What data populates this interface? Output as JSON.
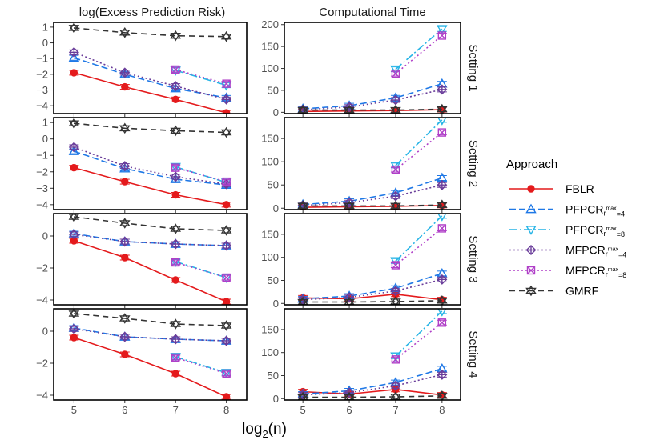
{
  "chart_data": {
    "type": "line",
    "x": [
      5,
      6,
      7,
      8
    ],
    "xlabel": "log2(n)",
    "xlabel_base": "log",
    "xlabel_sub": "2",
    "xlabel_rest": "(n)",
    "columns": [
      "log(Excess Prediction Risk)",
      "Computational Time"
    ],
    "legend_title": "Approach",
    "series_styles": [
      {
        "name": "FBLR",
        "color": "#e41a1c",
        "dash": "none",
        "marker": "circle"
      },
      {
        "name": "PFPCR_rmax=4",
        "label_base": "PFPCR",
        "label_sub": "r",
        "label_sup": "max",
        "label_tail": "=4",
        "color": "#1f78e6",
        "dash": "8,4",
        "marker": "triangle-up"
      },
      {
        "name": "PFPCR_rmax=8",
        "label_base": "PFPCR",
        "label_sub": "r",
        "label_sup": "max",
        "label_tail": "=8",
        "color": "#27b4e6",
        "dash": "10,3,2,3",
        "marker": "triangle-down"
      },
      {
        "name": "MFPCR_rmax=4",
        "label_base": "MFPCR",
        "label_sub": "r",
        "label_sup": "max",
        "label_tail": "=4",
        "color": "#6a3d9a",
        "dash": "2,3",
        "marker": "diamond-plus"
      },
      {
        "name": "MFPCR_rmax=8",
        "label_base": "MFPCR",
        "label_sub": "r",
        "label_sup": "max",
        "label_tail": "=8",
        "color": "#b040c8",
        "dash": "2,3",
        "marker": "square-x"
      },
      {
        "name": "GMRF",
        "color": "#333333",
        "dash": "7,5",
        "marker": "star"
      }
    ],
    "panels": [
      {
        "setting": "Setting 1",
        "column": 0,
        "ylim": [
          -4.5,
          1.3
        ],
        "yticks": [
          1,
          0,
          -1,
          -2,
          -3,
          -4
        ],
        "series": [
          {
            "name": "FBLR",
            "x": [
              5,
              6,
              7,
              8
            ],
            "values": [
              -1.9,
              -2.8,
              -3.6,
              -4.45
            ]
          },
          {
            "name": "PFPCR_rmax=4",
            "x": [
              5,
              6,
              7,
              8
            ],
            "values": [
              -0.95,
              -2.0,
              -2.9,
              -3.5
            ]
          },
          {
            "name": "PFPCR_rmax=8",
            "x": [
              7,
              8
            ],
            "values": [
              -1.75,
              -2.7
            ]
          },
          {
            "name": "MFPCR_rmax=4",
            "x": [
              5,
              6,
              7,
              8
            ],
            "values": [
              -0.6,
              -1.9,
              -2.75,
              -3.6
            ]
          },
          {
            "name": "MFPCR_rmax=8",
            "x": [
              7,
              8
            ],
            "values": [
              -1.7,
              -2.6
            ]
          },
          {
            "name": "GMRF",
            "x": [
              5,
              6,
              7,
              8
            ],
            "values": [
              0.95,
              0.65,
              0.45,
              0.4
            ]
          }
        ]
      },
      {
        "setting": "Setting 1",
        "column": 1,
        "ylim": [
          -3,
          205
        ],
        "yticks": [
          200,
          150,
          100,
          50,
          0
        ],
        "series": [
          {
            "name": "FBLR",
            "x": [
              5,
              6,
              7,
              8
            ],
            "values": [
              2,
              3,
              4,
              6
            ]
          },
          {
            "name": "PFPCR_rmax=4",
            "x": [
              5,
              6,
              7,
              8
            ],
            "values": [
              8,
              15,
              33,
              65
            ]
          },
          {
            "name": "PFPCR_rmax=8",
            "x": [
              7,
              8
            ],
            "values": [
              98,
              190
            ]
          },
          {
            "name": "MFPCR_rmax=4",
            "x": [
              5,
              6,
              7,
              8
            ],
            "values": [
              6,
              12,
              28,
              52
            ]
          },
          {
            "name": "MFPCR_rmax=8",
            "x": [
              7,
              8
            ],
            "values": [
              88,
              175
            ]
          },
          {
            "name": "GMRF",
            "x": [
              5,
              6,
              7,
              8
            ],
            "values": [
              5,
              5,
              5,
              7
            ]
          }
        ]
      },
      {
        "setting": "Setting 2",
        "column": 0,
        "ylim": [
          -4.3,
          1.3
        ],
        "yticks": [
          1,
          0,
          -1,
          -2,
          -3,
          -4
        ],
        "series": [
          {
            "name": "FBLR",
            "x": [
              5,
              6,
              7,
              8
            ],
            "values": [
              -1.75,
              -2.6,
              -3.4,
              -4.0
            ]
          },
          {
            "name": "PFPCR_rmax=4",
            "x": [
              5,
              6,
              7,
              8
            ],
            "values": [
              -0.75,
              -1.8,
              -2.45,
              -2.8
            ]
          },
          {
            "name": "PFPCR_rmax=8",
            "x": [
              7,
              8
            ],
            "values": [
              -1.7,
              -2.65
            ]
          },
          {
            "name": "MFPCR_rmax=4",
            "x": [
              5,
              6,
              7,
              8
            ],
            "values": [
              -0.5,
              -1.65,
              -2.3,
              -2.75
            ]
          },
          {
            "name": "MFPCR_rmax=8",
            "x": [
              7,
              8
            ],
            "values": [
              -1.75,
              -2.6
            ]
          },
          {
            "name": "GMRF",
            "x": [
              5,
              6,
              7,
              8
            ],
            "values": [
              0.95,
              0.65,
              0.5,
              0.4
            ]
          }
        ]
      },
      {
        "setting": "Setting 2",
        "column": 1,
        "ylim": [
          -3,
          195
        ],
        "yticks": [
          150,
          100,
          50,
          0
        ],
        "series": [
          {
            "name": "FBLR",
            "x": [
              5,
              6,
              7,
              8
            ],
            "values": [
              2,
              3,
              4,
              6
            ]
          },
          {
            "name": "PFPCR_rmax=4",
            "x": [
              5,
              6,
              7,
              8
            ],
            "values": [
              8,
              15,
              33,
              65
            ]
          },
          {
            "name": "PFPCR_rmax=8",
            "x": [
              7,
              8
            ],
            "values": [
              92,
              190
            ]
          },
          {
            "name": "MFPCR_rmax=4",
            "x": [
              5,
              6,
              7,
              8
            ],
            "values": [
              6,
              12,
              26,
              50
            ]
          },
          {
            "name": "MFPCR_rmax=8",
            "x": [
              7,
              8
            ],
            "values": [
              83,
              163
            ]
          },
          {
            "name": "GMRF",
            "x": [
              5,
              6,
              7,
              8
            ],
            "values": [
              5,
              5,
              5,
              7
            ]
          }
        ]
      },
      {
        "setting": "Setting 3",
        "column": 0,
        "ylim": [
          -4.3,
          1.4
        ],
        "yticks": [
          0,
          -2,
          -4
        ],
        "series": [
          {
            "name": "FBLR",
            "x": [
              5,
              6,
              7,
              8
            ],
            "values": [
              -0.3,
              -1.35,
              -2.75,
              -4.1
            ]
          },
          {
            "name": "PFPCR_rmax=4",
            "x": [
              5,
              6,
              7,
              8
            ],
            "values": [
              0.15,
              -0.35,
              -0.5,
              -0.6
            ]
          },
          {
            "name": "PFPCR_rmax=8",
            "x": [
              7,
              8
            ],
            "values": [
              -1.6,
              -2.6
            ]
          },
          {
            "name": "MFPCR_rmax=4",
            "x": [
              5,
              6,
              7,
              8
            ],
            "values": [
              0.1,
              -0.35,
              -0.5,
              -0.6
            ]
          },
          {
            "name": "MFPCR_rmax=8",
            "x": [
              7,
              8
            ],
            "values": [
              -1.65,
              -2.6
            ]
          },
          {
            "name": "GMRF",
            "x": [
              5,
              6,
              7,
              8
            ],
            "values": [
              1.2,
              0.8,
              0.45,
              0.35
            ]
          }
        ]
      },
      {
        "setting": "Setting 3",
        "column": 1,
        "ylim": [
          -3,
          195
        ],
        "yticks": [
          150,
          100,
          50,
          0
        ],
        "series": [
          {
            "name": "FBLR",
            "x": [
              5,
              6,
              7,
              8
            ],
            "values": [
              12,
              10,
              20,
              8
            ]
          },
          {
            "name": "PFPCR_rmax=4",
            "x": [
              5,
              6,
              7,
              8
            ],
            "values": [
              10,
              16,
              33,
              65
            ]
          },
          {
            "name": "PFPCR_rmax=8",
            "x": [
              7,
              8
            ],
            "values": [
              92,
              190
            ]
          },
          {
            "name": "MFPCR_rmax=4",
            "x": [
              5,
              6,
              7,
              8
            ],
            "values": [
              8,
              13,
              27,
              52
            ]
          },
          {
            "name": "MFPCR_rmax=8",
            "x": [
              7,
              8
            ],
            "values": [
              83,
              163
            ]
          },
          {
            "name": "GMRF",
            "x": [
              5,
              6,
              7,
              8
            ],
            "values": [
              3,
              3,
              4,
              6
            ]
          }
        ]
      },
      {
        "setting": "Setting 4",
        "column": 0,
        "ylim": [
          -4.3,
          1.4
        ],
        "yticks": [
          0,
          -2,
          -4
        ],
        "series": [
          {
            "name": "FBLR",
            "x": [
              5,
              6,
              7,
              8
            ],
            "values": [
              -0.4,
              -1.45,
              -2.65,
              -4.1
            ]
          },
          {
            "name": "PFPCR_rmax=4",
            "x": [
              5,
              6,
              7,
              8
            ],
            "values": [
              0.2,
              -0.35,
              -0.5,
              -0.6
            ]
          },
          {
            "name": "PFPCR_rmax=8",
            "x": [
              7,
              8
            ],
            "values": [
              -1.6,
              -2.6
            ]
          },
          {
            "name": "MFPCR_rmax=4",
            "x": [
              5,
              6,
              7,
              8
            ],
            "values": [
              0.15,
              -0.35,
              -0.5,
              -0.6
            ]
          },
          {
            "name": "MFPCR_rmax=8",
            "x": [
              7,
              8
            ],
            "values": [
              -1.65,
              -2.65
            ]
          },
          {
            "name": "GMRF",
            "x": [
              5,
              6,
              7,
              8
            ],
            "values": [
              1.1,
              0.8,
              0.45,
              0.35
            ]
          }
        ]
      },
      {
        "setting": "Setting 4",
        "column": 1,
        "ylim": [
          -3,
          195
        ],
        "yticks": [
          150,
          100,
          50,
          0
        ],
        "series": [
          {
            "name": "FBLR",
            "x": [
              5,
              6,
              7,
              8
            ],
            "values": [
              15,
              10,
              20,
              8
            ]
          },
          {
            "name": "PFPCR_rmax=4",
            "x": [
              5,
              6,
              7,
              8
            ],
            "values": [
              10,
              17,
              35,
              65
            ]
          },
          {
            "name": "PFPCR_rmax=8",
            "x": [
              7,
              8
            ],
            "values": [
              92,
              190
            ]
          },
          {
            "name": "MFPCR_rmax=4",
            "x": [
              5,
              6,
              7,
              8
            ],
            "values": [
              8,
              13,
              28,
              52
            ]
          },
          {
            "name": "MFPCR_rmax=8",
            "x": [
              7,
              8
            ],
            "values": [
              85,
              165
            ]
          },
          {
            "name": "GMRF",
            "x": [
              5,
              6,
              7,
              8
            ],
            "values": [
              3,
              3,
              4,
              6
            ]
          }
        ]
      }
    ]
  }
}
